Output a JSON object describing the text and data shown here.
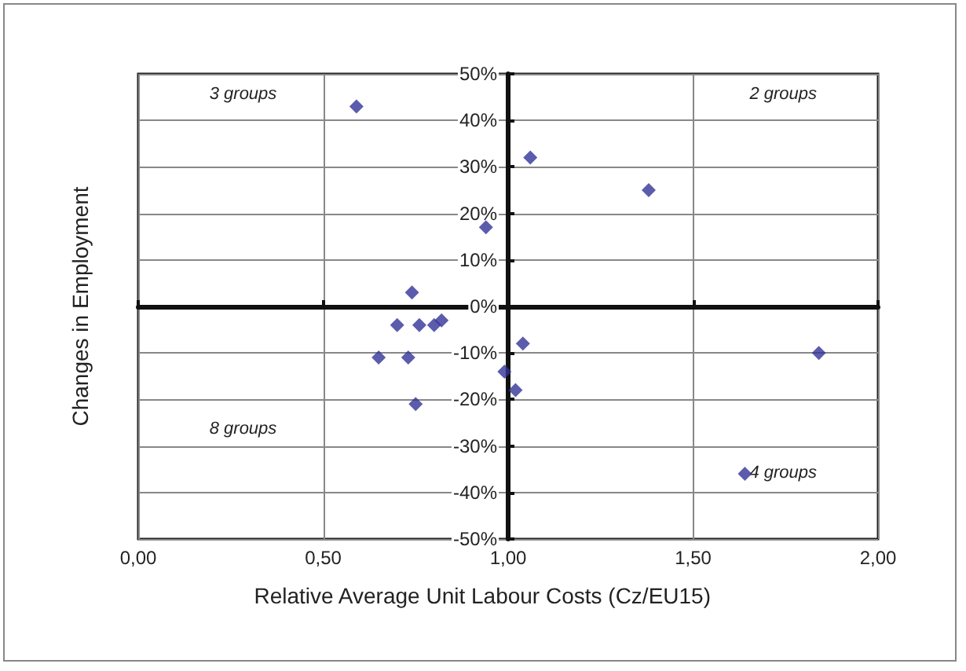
{
  "chart_data": {
    "type": "scatter",
    "xlabel": "Relative Average Unit Labour Costs (Cz/EU15)",
    "ylabel": "Changes in Employment",
    "annotations": [
      "3 groups",
      "2 groups",
      "8 groups",
      "4 groups"
    ],
    "x": [
      0.59,
      1.06,
      0.94,
      0.74,
      0.7,
      0.76,
      0.8,
      0.82,
      0.65,
      0.73,
      1.04,
      0.99,
      0.75,
      1.02,
      1.38,
      1.84,
      1.64
    ],
    "series": [
      {
        "color": "#333399",
        "values": [
          43,
          32,
          17,
          3,
          -4,
          -4,
          -4,
          -3,
          -11,
          -11,
          -8,
          -14,
          -21,
          -18,
          25,
          -10,
          -36
        ]
      }
    ],
    "xlim": [
      0,
      2
    ],
    "xticks": [
      {
        "value": 0,
        "label": "0,00"
      },
      {
        "value": 0.5,
        "label": "0,50"
      },
      {
        "value": 1,
        "label": "1,00"
      },
      {
        "value": 1.5,
        "label": "1,50"
      },
      {
        "value": 2,
        "label": "2,00"
      }
    ],
    "ylim": [
      -50,
      50
    ],
    "yticks": [
      {
        "value": -50,
        "label": "-50%"
      },
      {
        "value": -40,
        "label": "-40%"
      },
      {
        "value": -30,
        "label": "-30%"
      },
      {
        "value": -20,
        "label": "-20%"
      },
      {
        "value": -10,
        "label": "-10%"
      },
      {
        "value": 0,
        "label": "0%"
      },
      {
        "value": 10,
        "label": "10%"
      },
      {
        "value": 20,
        "label": "20%"
      },
      {
        "value": 30,
        "label": "30%"
      },
      {
        "value": 40,
        "label": "40%"
      },
      {
        "value": 50,
        "label": "50%"
      }
    ],
    "grid": true,
    "marker": "diamond"
  }
}
